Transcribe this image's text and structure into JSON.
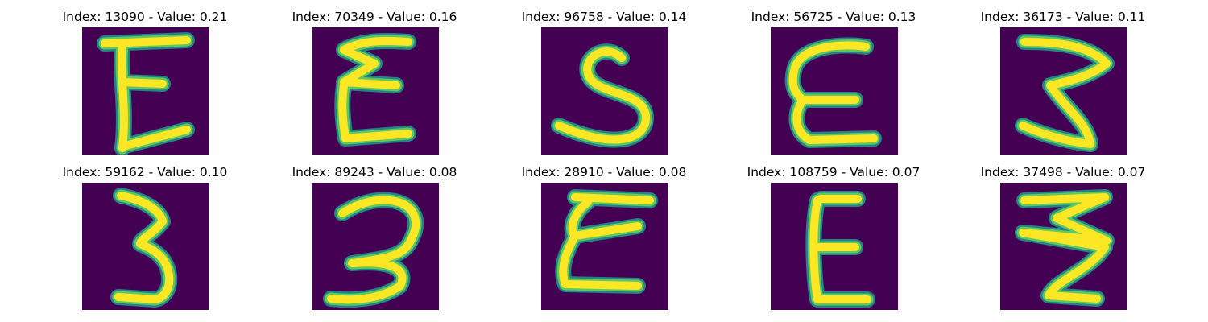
{
  "panels": [
    {
      "title": "Index: 13090 - Value: 0.21",
      "shape": "E"
    },
    {
      "title": "Index: 70349 - Value: 0.16",
      "shape": "E"
    },
    {
      "title": "Index: 96758 - Value: 0.14",
      "shape": "S"
    },
    {
      "title": "Index: 56725 - Value: 0.13",
      "shape": "E"
    },
    {
      "title": "Index: 36173 - Value: 0.11",
      "shape": "3"
    },
    {
      "title": "Index: 59162 - Value: 0.10",
      "shape": "3"
    },
    {
      "title": "Index: 89243 - Value: 0.08",
      "shape": "3"
    },
    {
      "title": "Index: 28910 - Value: 0.08",
      "shape": "E"
    },
    {
      "title": "Index: 108759 - Value: 0.07",
      "shape": "E"
    },
    {
      "title": "Index: 37498 - Value: 0.07",
      "shape": "3"
    }
  ]
}
